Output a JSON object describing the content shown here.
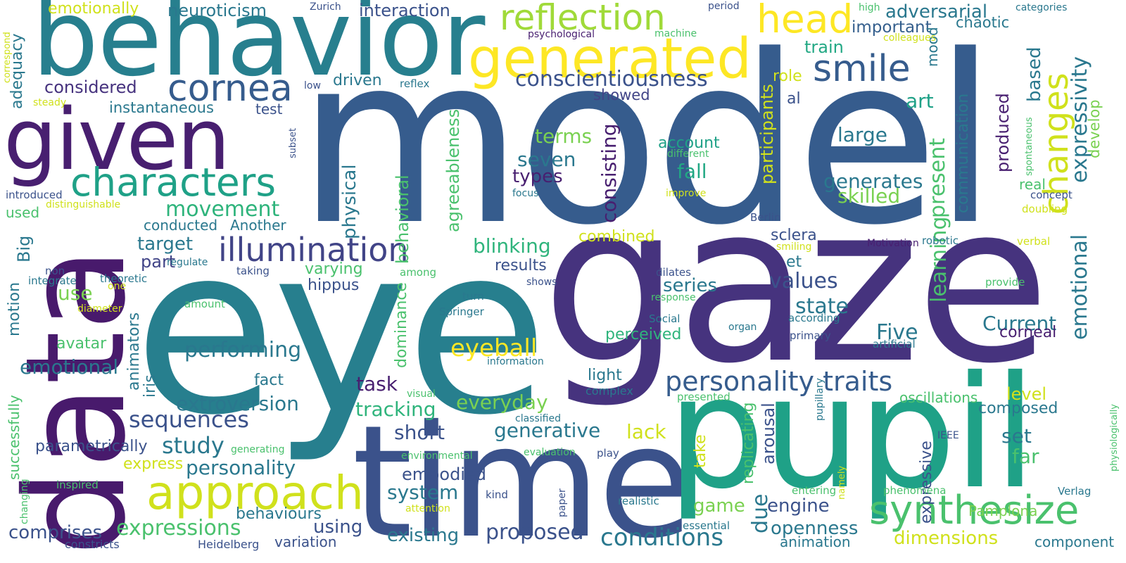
{
  "words": [
    {
      "text": "model",
      "color": "#365c8d"
    },
    {
      "text": "eye",
      "color": "#277f8e"
    },
    {
      "text": "gaze",
      "color": "#46337e"
    },
    {
      "text": "time",
      "color": "#3b528b"
    },
    {
      "text": "pupil",
      "color": "#1fa187"
    },
    {
      "text": "data",
      "color": "#481a6c"
    },
    {
      "text": "behavior",
      "color": "#277f8e"
    },
    {
      "text": "given",
      "color": "#481f70"
    },
    {
      "text": "generated",
      "color": "#fde725"
    },
    {
      "text": "reflection",
      "color": "#a0da39"
    },
    {
      "text": "head",
      "color": "#fde725"
    },
    {
      "text": "cornea",
      "color": "#365c8d"
    },
    {
      "text": "smile",
      "color": "#365c8d"
    },
    {
      "text": "characters",
      "color": "#1fa187"
    },
    {
      "text": "illumination",
      "color": "#414487"
    },
    {
      "text": "approach",
      "color": "#d0e11c"
    },
    {
      "text": "synthesize",
      "color": "#4ac16d"
    },
    {
      "text": "changes",
      "color": "#d0e11c"
    },
    {
      "text": "personality traits",
      "color": "#365c8d"
    },
    {
      "text": "expressivity",
      "color": "#2a788e"
    },
    {
      "text": "emotional",
      "color": "#2a788e"
    },
    {
      "text": "eyeball",
      "color": "#fde725"
    },
    {
      "text": "movement",
      "color": "#2fb47c"
    },
    {
      "text": "adversarial",
      "color": "#2a788e"
    },
    {
      "text": "conscientiousness",
      "color": "#3b528b"
    },
    {
      "text": "neuroticism",
      "color": "#2a788e"
    },
    {
      "text": "interaction",
      "color": "#3b528b"
    },
    {
      "text": "emotionally",
      "color": "#d0e11c"
    },
    {
      "text": "important",
      "color": "#355f8d"
    },
    {
      "text": "chaotic",
      "color": "#2a788e"
    },
    {
      "text": "develop",
      "color": "#7ad151"
    },
    {
      "text": "based",
      "color": "#2a788e"
    },
    {
      "text": "train",
      "color": "#22a884"
    },
    {
      "text": "considered",
      "color": "#46327e"
    },
    {
      "text": "driven",
      "color": "#2a788e"
    },
    {
      "text": "instantaneous",
      "color": "#2a788e"
    },
    {
      "text": "test",
      "color": "#3b528b"
    },
    {
      "text": "showed",
      "color": "#414487"
    },
    {
      "text": "adequacy",
      "color": "#2a788e"
    },
    {
      "text": "terms",
      "color": "#7ad151"
    },
    {
      "text": "seven",
      "color": "#2a788e"
    },
    {
      "text": "types",
      "color": "#481f70"
    },
    {
      "text": "fall",
      "color": "#22a884"
    },
    {
      "text": "account",
      "color": "#1fa187"
    },
    {
      "text": "large",
      "color": "#2a788e"
    },
    {
      "text": "generates",
      "color": "#2a788e"
    },
    {
      "text": "skilled",
      "color": "#7ad151"
    },
    {
      "text": "art",
      "color": "#1fa187"
    },
    {
      "text": "role",
      "color": "#d0e11c"
    },
    {
      "text": "mood",
      "color": "#2a788e"
    },
    {
      "text": "produced",
      "color": "#481f70"
    },
    {
      "text": "present",
      "color": "#4ac16d"
    },
    {
      "text": "learning",
      "color": "#4ac16d"
    },
    {
      "text": "communication",
      "color": "#2a788e"
    },
    {
      "text": "participants",
      "color": "#d0e11c"
    },
    {
      "text": "consisting",
      "color": "#481f70"
    },
    {
      "text": "physical",
      "color": "#2a788e"
    },
    {
      "text": "agreeableness",
      "color": "#4ac16d"
    },
    {
      "text": "behavioral",
      "color": "#4ac16d"
    },
    {
      "text": "blinking",
      "color": "#2fb47c"
    },
    {
      "text": "conducted",
      "color": "#2a788e"
    },
    {
      "text": "Another",
      "color": "#2a788e"
    },
    {
      "text": "target",
      "color": "#2a788e"
    },
    {
      "text": "part",
      "color": "#414487"
    },
    {
      "text": "Big",
      "color": "#2a788e"
    },
    {
      "text": "motion",
      "color": "#2a788e"
    },
    {
      "text": "animators",
      "color": "#2a788e"
    },
    {
      "text": "use",
      "color": "#7ad151"
    },
    {
      "text": "avatar",
      "color": "#4ac16d"
    },
    {
      "text": "performing",
      "color": "#2a788e"
    },
    {
      "text": "varying",
      "color": "#4ac16d"
    },
    {
      "text": "hippus",
      "color": "#3b528b"
    },
    {
      "text": "results",
      "color": "#3b528b"
    },
    {
      "text": "series",
      "color": "#2a788e"
    },
    {
      "text": "values",
      "color": "#3b528b"
    },
    {
      "text": "state",
      "color": "#2a788e"
    },
    {
      "text": "et",
      "color": "#2a788e"
    },
    {
      "text": "al",
      "color": "#3b528b"
    },
    {
      "text": "sclera",
      "color": "#3b528b"
    },
    {
      "text": "Five",
      "color": "#2a788e"
    },
    {
      "text": "Current",
      "color": "#2a788e"
    },
    {
      "text": "corneal",
      "color": "#481f70"
    },
    {
      "text": "emotional",
      "color": "#2a788e"
    },
    {
      "text": "extroversion",
      "color": "#2a788e"
    },
    {
      "text": "sequences",
      "color": "#3b528b"
    },
    {
      "text": "study",
      "color": "#2a788e"
    },
    {
      "text": "task",
      "color": "#481f70"
    },
    {
      "text": "fact",
      "color": "#2a788e"
    },
    {
      "text": "iris",
      "color": "#2a788e"
    },
    {
      "text": "tracking",
      "color": "#2fb47c"
    },
    {
      "text": "everyday",
      "color": "#7ad151"
    },
    {
      "text": "short",
      "color": "#3b528b"
    },
    {
      "text": "generative",
      "color": "#2a788e"
    },
    {
      "text": "lack",
      "color": "#d0e11c"
    },
    {
      "text": "dominance",
      "color": "#4ac16d"
    },
    {
      "text": "light",
      "color": "#2a788e"
    },
    {
      "text": "complex",
      "color": "#2a788e"
    },
    {
      "text": "perceived",
      "color": "#2fb47c"
    },
    {
      "text": "level",
      "color": "#d0e11c"
    },
    {
      "text": "oscillations",
      "color": "#4ac16d"
    },
    {
      "text": "composed",
      "color": "#2a788e"
    },
    {
      "text": "set",
      "color": "#2a788e"
    },
    {
      "text": "far",
      "color": "#4ac16d"
    },
    {
      "text": "parametrically",
      "color": "#3b528b"
    },
    {
      "text": "personality",
      "color": "#2a788e"
    },
    {
      "text": "express",
      "color": "#d0e11c"
    },
    {
      "text": "embodied",
      "color": "#3b528b"
    },
    {
      "text": "system",
      "color": "#2a788e"
    },
    {
      "text": "game",
      "color": "#7ad151"
    },
    {
      "text": "engine",
      "color": "#3b528b"
    },
    {
      "text": "due",
      "color": "#2a788e"
    },
    {
      "text": "replicating",
      "color": "#4ac16d"
    },
    {
      "text": "arousal",
      "color": "#3b528b"
    },
    {
      "text": "take",
      "color": "#d0e11c"
    },
    {
      "text": "expressive",
      "color": "#3b528b"
    },
    {
      "text": "Pamplona",
      "color": "#7ad151"
    },
    {
      "text": "comprises",
      "color": "#3b528b"
    },
    {
      "text": "expressions",
      "color": "#4ac16d"
    },
    {
      "text": "behaviours",
      "color": "#2a788e"
    },
    {
      "text": "using",
      "color": "#3b528b"
    },
    {
      "text": "existing",
      "color": "#2a788e"
    },
    {
      "text": "proposed",
      "color": "#3b528b"
    },
    {
      "text": "conditions",
      "color": "#2a788e"
    },
    {
      "text": "openness",
      "color": "#2a788e"
    },
    {
      "text": "animation",
      "color": "#2a788e"
    },
    {
      "text": "dimensions",
      "color": "#d0e11c"
    },
    {
      "text": "component",
      "color": "#2a788e"
    },
    {
      "text": "variation",
      "color": "#3b528b"
    },
    {
      "text": "constricts",
      "color": "#3b528b"
    },
    {
      "text": "Heidelberg",
      "color": "#3b528b"
    },
    {
      "text": "successfully",
      "color": "#4ac16d"
    },
    {
      "text": "generating",
      "color": "#4ac16d"
    },
    {
      "text": "inspired",
      "color": "#4ac16d"
    },
    {
      "text": "changing",
      "color": "#4ac16d"
    },
    {
      "text": "environmental",
      "color": "#4ac16d"
    },
    {
      "text": "evaluation",
      "color": "#4ac16d"
    },
    {
      "text": "play",
      "color": "#3b528b"
    },
    {
      "text": "kind",
      "color": "#3b528b"
    },
    {
      "text": "paper",
      "color": "#3b528b"
    },
    {
      "text": "attention",
      "color": "#d0e11c"
    },
    {
      "text": "realistic",
      "color": "#2a788e"
    },
    {
      "text": "essential",
      "color": "#2a788e"
    },
    {
      "text": "entering",
      "color": "#4ac16d"
    },
    {
      "text": "namely",
      "color": "#d0e11c"
    },
    {
      "text": "phenomena",
      "color": "#4ac16d"
    },
    {
      "text": "Verlag",
      "color": "#2a788e"
    },
    {
      "text": "IEEE",
      "color": "#3b528b"
    },
    {
      "text": "pupillary",
      "color": "#2a788e"
    },
    {
      "text": "presented",
      "color": "#4ac16d"
    },
    {
      "text": "visual",
      "color": "#4ac16d"
    },
    {
      "text": "information",
      "color": "#2a788e"
    },
    {
      "text": "classified",
      "color": "#2a788e"
    },
    {
      "text": "Springer",
      "color": "#2a788e"
    },
    {
      "text": "turn",
      "color": "#2a788e"
    },
    {
      "text": "amount",
      "color": "#4ac16d"
    },
    {
      "text": "theoretic",
      "color": "#2a788e"
    },
    {
      "text": "one",
      "color": "#d0e11c"
    },
    {
      "text": "diameter",
      "color": "#d0e11c"
    },
    {
      "text": "integrate",
      "color": "#2a788e"
    },
    {
      "text": "non",
      "color": "#3b528b"
    },
    {
      "text": "regulate",
      "color": "#2a788e"
    },
    {
      "text": "taking",
      "color": "#3b528b"
    },
    {
      "text": "among",
      "color": "#4ac16d"
    },
    {
      "text": "shows",
      "color": "#3b528b"
    },
    {
      "text": "dilates",
      "color": "#3b528b"
    },
    {
      "text": "response",
      "color": "#4ac16d"
    },
    {
      "text": "Social",
      "color": "#2a788e"
    },
    {
      "text": "according",
      "color": "#2a788e"
    },
    {
      "text": "organ",
      "color": "#2a788e"
    },
    {
      "text": "primary",
      "color": "#3b528b"
    },
    {
      "text": "artificial",
      "color": "#2a788e"
    },
    {
      "text": "combined",
      "color": "#d0e11c"
    },
    {
      "text": "Berlin",
      "color": "#3b528b"
    },
    {
      "text": "smiling",
      "color": "#d0e11c"
    },
    {
      "text": "robotic",
      "color": "#2a788e"
    },
    {
      "text": "Motivation",
      "color": "#481f70"
    },
    {
      "text": "verbal",
      "color": "#d0e11c"
    },
    {
      "text": "provide",
      "color": "#4ac16d"
    },
    {
      "text": "real",
      "color": "#4ac16d"
    },
    {
      "text": "concept",
      "color": "#3b528b"
    },
    {
      "text": "doubling",
      "color": "#d0e11c"
    },
    {
      "text": "spontaneous",
      "color": "#4ac16d"
    },
    {
      "text": "physiologically",
      "color": "#4ac16d"
    },
    {
      "text": "different",
      "color": "#4ac16d"
    },
    {
      "text": "improve",
      "color": "#d0e11c"
    },
    {
      "text": "focus",
      "color": "#2a788e"
    },
    {
      "text": "reflex",
      "color": "#2a788e"
    },
    {
      "text": "low",
      "color": "#3b528b"
    },
    {
      "text": "steady",
      "color": "#d0e11c"
    },
    {
      "text": "correspond",
      "color": "#d0e11c"
    },
    {
      "text": "subset",
      "color": "#3b528b"
    },
    {
      "text": "introduced",
      "color": "#3b528b"
    },
    {
      "text": "used",
      "color": "#4ac16d"
    },
    {
      "text": "distinguishable",
      "color": "#d0e11c"
    },
    {
      "text": "Zurich",
      "color": "#3b528b"
    },
    {
      "text": "psychological",
      "color": "#481f70"
    },
    {
      "text": "machine",
      "color": "#4ac16d"
    },
    {
      "text": "period",
      "color": "#3b528b"
    },
    {
      "text": "high",
      "color": "#4ac16d"
    },
    {
      "text": "categories",
      "color": "#2a788e"
    },
    {
      "text": "colleagues",
      "color": "#d0e11c"
    }
  ]
}
